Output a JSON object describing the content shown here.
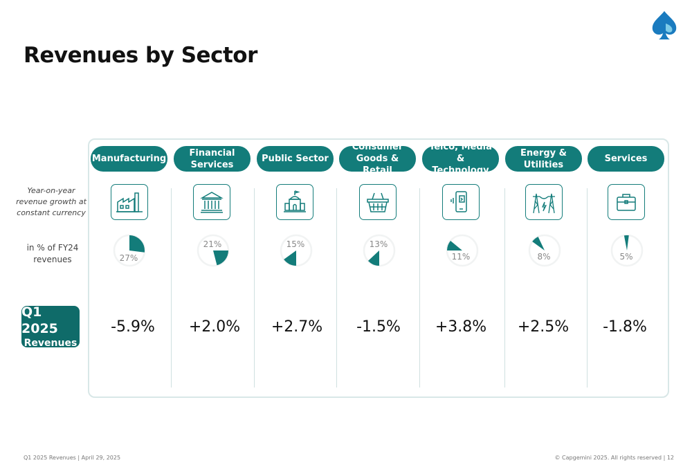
{
  "title": "Revenues by Sector",
  "row_labels": {
    "growth": "Year-on-year revenue growth at constant currency",
    "share": "in % of FY24\nrevenues"
  },
  "q1_badge": {
    "line1": "Q1 2025",
    "line2": "Revenues"
  },
  "colors": {
    "accent": "#137c7a",
    "dark_accent": "#0f6b69",
    "pie_bg": "#f1f3f3",
    "logo": "#1a7bbf"
  },
  "sectors": [
    {
      "name": "Manufacturing",
      "icon": "factory-icon",
      "share_pct": 27,
      "share_label": "27%",
      "growth": "-5.9%"
    },
    {
      "name": "Financial\nServices",
      "icon": "bank-icon",
      "share_pct": 21,
      "share_label": "21%",
      "growth": "+2.0%"
    },
    {
      "name": "Public Sector",
      "icon": "government-building-icon",
      "share_pct": 15,
      "share_label": "15%",
      "growth": "+2.7%"
    },
    {
      "name": "Consumer\nGoods & Retail",
      "icon": "shopping-basket-icon",
      "share_pct": 13,
      "share_label": "13%",
      "growth": "-1.5%"
    },
    {
      "name": "Telco, Media &\nTechnology",
      "icon": "smartphone-icon",
      "share_pct": 11,
      "share_label": "11%",
      "growth": "+3.8%"
    },
    {
      "name": "Energy &\nUtilities",
      "icon": "power-pylon-icon",
      "share_pct": 8,
      "share_label": "8%",
      "growth": "+2.5%"
    },
    {
      "name": "Services",
      "icon": "briefcase-icon",
      "share_pct": 5,
      "share_label": "5%",
      "growth": "-1.8%"
    }
  ],
  "footer": {
    "left": "Q1 2025 Revenues  |  April 29, 2025",
    "right": "© Capgemini 2025. All rights reserved  |   12"
  }
}
